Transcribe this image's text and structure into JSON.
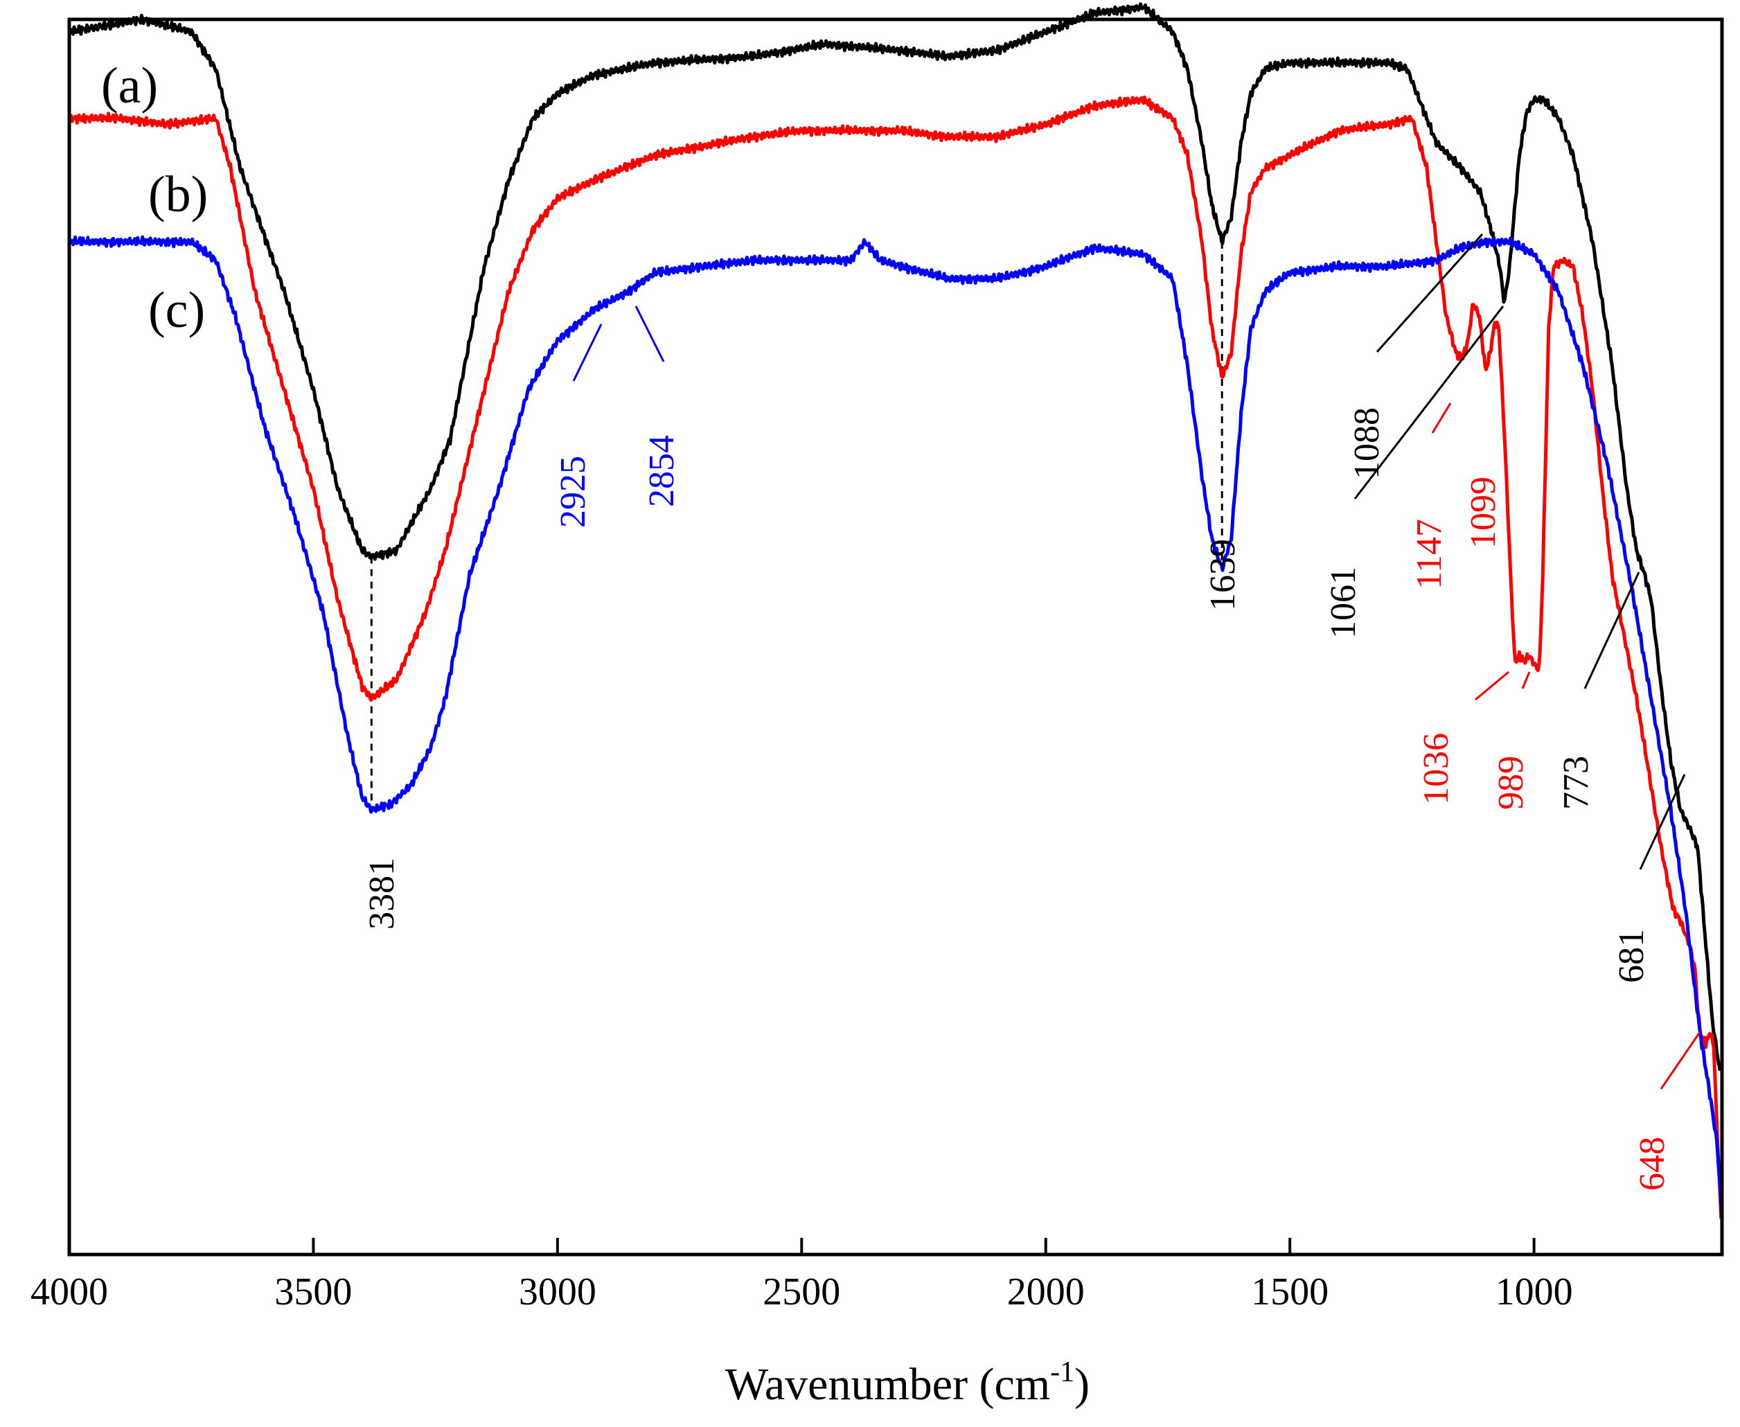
{
  "chart_data": {
    "type": "line",
    "title": "",
    "xlabel": "Wavenumber (cm",
    "xlabel_sup": "-1",
    "xlabel_close": ")",
    "ylabel": "",
    "xlim": [
      4000,
      615
    ],
    "ylim": [
      0,
      100
    ],
    "x_ticks": [
      4000,
      3500,
      3000,
      2500,
      2000,
      1500,
      1000
    ],
    "y_ticks": [],
    "grid": false,
    "colors": {
      "a": "#000000",
      "b": "#ff0000",
      "c": "#0000ff"
    },
    "series": [
      {
        "name": "(a)",
        "color": "#000000",
        "points": [
          [
            4000,
            99
          ],
          [
            3850,
            100
          ],
          [
            3750,
            99
          ],
          [
            3700,
            96
          ],
          [
            3650,
            88
          ],
          [
            3560,
            78
          ],
          [
            3500,
            70
          ],
          [
            3450,
            62
          ],
          [
            3400,
            57
          ],
          [
            3381,
            56.5
          ],
          [
            3330,
            57
          ],
          [
            3260,
            62
          ],
          [
            3220,
            66
          ],
          [
            3150,
            80
          ],
          [
            3100,
            87
          ],
          [
            3050,
            92
          ],
          [
            3000,
            94
          ],
          [
            2925,
            95.5
          ],
          [
            2800,
            96.5
          ],
          [
            2600,
            97
          ],
          [
            2450,
            98
          ],
          [
            2300,
            97.5
          ],
          [
            2200,
            97
          ],
          [
            2100,
            97.5
          ],
          [
            2000,
            99
          ],
          [
            1900,
            100.5
          ],
          [
            1800,
            101
          ],
          [
            1740,
            99
          ],
          [
            1710,
            96
          ],
          [
            1680,
            90
          ],
          [
            1660,
            85
          ],
          [
            1639,
            82
          ],
          [
            1620,
            84
          ],
          [
            1600,
            90
          ],
          [
            1580,
            94
          ],
          [
            1550,
            96
          ],
          [
            1500,
            96.5
          ],
          [
            1400,
            96.5
          ],
          [
            1300,
            96.5
          ],
          [
            1260,
            96
          ],
          [
            1230,
            93
          ],
          [
            1200,
            90
          ],
          [
            1150,
            88
          ],
          [
            1110,
            86
          ],
          [
            1088,
            83
          ],
          [
            1070,
            80
          ],
          [
            1061,
            77
          ],
          [
            1050,
            80
          ],
          [
            1030,
            89
          ],
          [
            1015,
            92.5
          ],
          [
            1000,
            93.5
          ],
          [
            980,
            93.5
          ],
          [
            950,
            92
          ],
          [
            920,
            89
          ],
          [
            880,
            82
          ],
          [
            840,
            72
          ],
          [
            810,
            62
          ],
          [
            790,
            57
          ],
          [
            773,
            55
          ],
          [
            760,
            53
          ],
          [
            740,
            46
          ],
          [
            720,
            40
          ],
          [
            700,
            36
          ],
          [
            681,
            34.5
          ],
          [
            665,
            33
          ],
          [
            650,
            26
          ],
          [
            635,
            19
          ],
          [
            620,
            15
          ]
        ]
      },
      {
        "name": "(b)",
        "color": "#ff0000",
        "points": [
          [
            4000,
            92
          ],
          [
            3900,
            92
          ],
          [
            3800,
            91.5
          ],
          [
            3700,
            92
          ],
          [
            3670,
            88
          ],
          [
            3620,
            78
          ],
          [
            3560,
            70
          ],
          [
            3500,
            62
          ],
          [
            3450,
            53
          ],
          [
            3400,
            46
          ],
          [
            3381,
            45
          ],
          [
            3330,
            46.5
          ],
          [
            3270,
            52
          ],
          [
            3230,
            57
          ],
          [
            3150,
            70
          ],
          [
            3100,
            78
          ],
          [
            3050,
            83
          ],
          [
            3000,
            85.5
          ],
          [
            2925,
            87
          ],
          [
            2800,
            89
          ],
          [
            2600,
            90.5
          ],
          [
            2500,
            91
          ],
          [
            2300,
            91
          ],
          [
            2200,
            90.5
          ],
          [
            2100,
            90.5
          ],
          [
            2000,
            91.5
          ],
          [
            1900,
            93
          ],
          [
            1800,
            93.5
          ],
          [
            1740,
            92
          ],
          [
            1710,
            89
          ],
          [
            1680,
            82
          ],
          [
            1660,
            75
          ],
          [
            1639,
            71
          ],
          [
            1620,
            73
          ],
          [
            1600,
            81
          ],
          [
            1580,
            86
          ],
          [
            1550,
            88
          ],
          [
            1500,
            89
          ],
          [
            1400,
            91
          ],
          [
            1300,
            91.5
          ],
          [
            1250,
            92
          ],
          [
            1220,
            88
          ],
          [
            1200,
            82
          ],
          [
            1180,
            76
          ],
          [
            1160,
            73
          ],
          [
            1147,
            72.5
          ],
          [
            1135,
            74
          ],
          [
            1125,
            77
          ],
          [
            1112,
            76
          ],
          [
            1099,
            71.5
          ],
          [
            1090,
            73
          ],
          [
            1080,
            75.5
          ],
          [
            1072,
            75
          ],
          [
            1060,
            66
          ],
          [
            1048,
            55
          ],
          [
            1040,
            48.5
          ],
          [
            1036,
            48
          ],
          [
            1030,
            48.5
          ],
          [
            1020,
            48
          ],
          [
            1010,
            48.5
          ],
          [
            995,
            47.5
          ],
          [
            989,
            47.5
          ],
          [
            982,
            55
          ],
          [
            970,
            75
          ],
          [
            960,
            80
          ],
          [
            940,
            80.5
          ],
          [
            920,
            80
          ],
          [
            900,
            76
          ],
          [
            880,
            70
          ],
          [
            860,
            62
          ],
          [
            840,
            55
          ],
          [
            815,
            50
          ],
          [
            790,
            45
          ],
          [
            773,
            41
          ],
          [
            740,
            33
          ],
          [
            715,
            28
          ],
          [
            700,
            27
          ],
          [
            681,
            25
          ],
          [
            670,
            23
          ],
          [
            665,
            20
          ],
          [
            660,
            18
          ],
          [
            655,
            17.5
          ],
          [
            648,
            17
          ],
          [
            640,
            18
          ],
          [
            632,
            17
          ],
          [
            625,
            10
          ],
          [
            617,
            3
          ]
        ]
      },
      {
        "name": "(c)",
        "color": "#0000ff",
        "points": [
          [
            4000,
            82
          ],
          [
            3850,
            82
          ],
          [
            3750,
            82
          ],
          [
            3700,
            80.5
          ],
          [
            3660,
            76
          ],
          [
            3600,
            67
          ],
          [
            3540,
            60
          ],
          [
            3480,
            52
          ],
          [
            3430,
            42
          ],
          [
            3400,
            37
          ],
          [
            3381,
            36
          ],
          [
            3340,
            36.5
          ],
          [
            3300,
            38
          ],
          [
            3260,
            41
          ],
          [
            3230,
            45
          ],
          [
            3180,
            55
          ],
          [
            3120,
            62
          ],
          [
            3060,
            70
          ],
          [
            3000,
            74
          ],
          [
            2925,
            76.5
          ],
          [
            2854,
            78
          ],
          [
            2800,
            79.5
          ],
          [
            2600,
            80.5
          ],
          [
            2400,
            80.5
          ],
          [
            2370,
            82
          ],
          [
            2340,
            80.5
          ],
          [
            2200,
            79
          ],
          [
            2100,
            79
          ],
          [
            2000,
            80
          ],
          [
            1900,
            81.5
          ],
          [
            1800,
            81
          ],
          [
            1740,
            79
          ],
          [
            1710,
            72
          ],
          [
            1680,
            63
          ],
          [
            1660,
            58
          ],
          [
            1639,
            55.5
          ],
          [
            1620,
            58
          ],
          [
            1600,
            68
          ],
          [
            1580,
            75
          ],
          [
            1550,
            78
          ],
          [
            1500,
            79.5
          ],
          [
            1400,
            80
          ],
          [
            1300,
            80
          ],
          [
            1200,
            80.5
          ],
          [
            1150,
            81.5
          ],
          [
            1100,
            82
          ],
          [
            1050,
            82
          ],
          [
            1000,
            81
          ],
          [
            950,
            78
          ],
          [
            900,
            72
          ],
          [
            850,
            64
          ],
          [
            800,
            54
          ],
          [
            760,
            45
          ],
          [
            720,
            36
          ],
          [
            690,
            28
          ],
          [
            660,
            18
          ],
          [
            640,
            13
          ],
          [
            625,
            9
          ],
          [
            615,
            3
          ]
        ]
      }
    ],
    "series_labels": [
      "(a)",
      "(b)",
      "(c)"
    ],
    "annotations": [
      {
        "text": "3381",
        "x": 3381,
        "y": 33.5,
        "color": "#000000"
      },
      {
        "text": "1639",
        "x": 1639,
        "y": 50,
        "color": "#000000"
      },
      {
        "text": "2925",
        "x": 2925,
        "y": 73,
        "color": "#0000ff"
      },
      {
        "text": "2854",
        "x": 2854,
        "y": 73,
        "color": "#0000ff"
      },
      {
        "text": "1088",
        "x": 1088,
        "y": 78,
        "color": "#000000"
      },
      {
        "text": "1061",
        "x": 1061,
        "y": 74,
        "color": "#000000"
      },
      {
        "text": "1147",
        "x": 1147,
        "y": 70,
        "color": "#ff0000"
      },
      {
        "text": "1099",
        "x": 1099,
        "y": 70,
        "color": "#ff0000"
      },
      {
        "text": "1036",
        "x": 1036,
        "y": 46,
        "color": "#ff0000"
      },
      {
        "text": "989",
        "x": 989,
        "y": 46,
        "color": "#ff0000"
      },
      {
        "text": "773",
        "x": 773,
        "y": 53,
        "color": "#000000"
      },
      {
        "text": "681",
        "x": 681,
        "y": 33,
        "color": "#000000"
      },
      {
        "text": "648",
        "x": 648,
        "y": 15,
        "color": "#ff0000"
      }
    ]
  }
}
